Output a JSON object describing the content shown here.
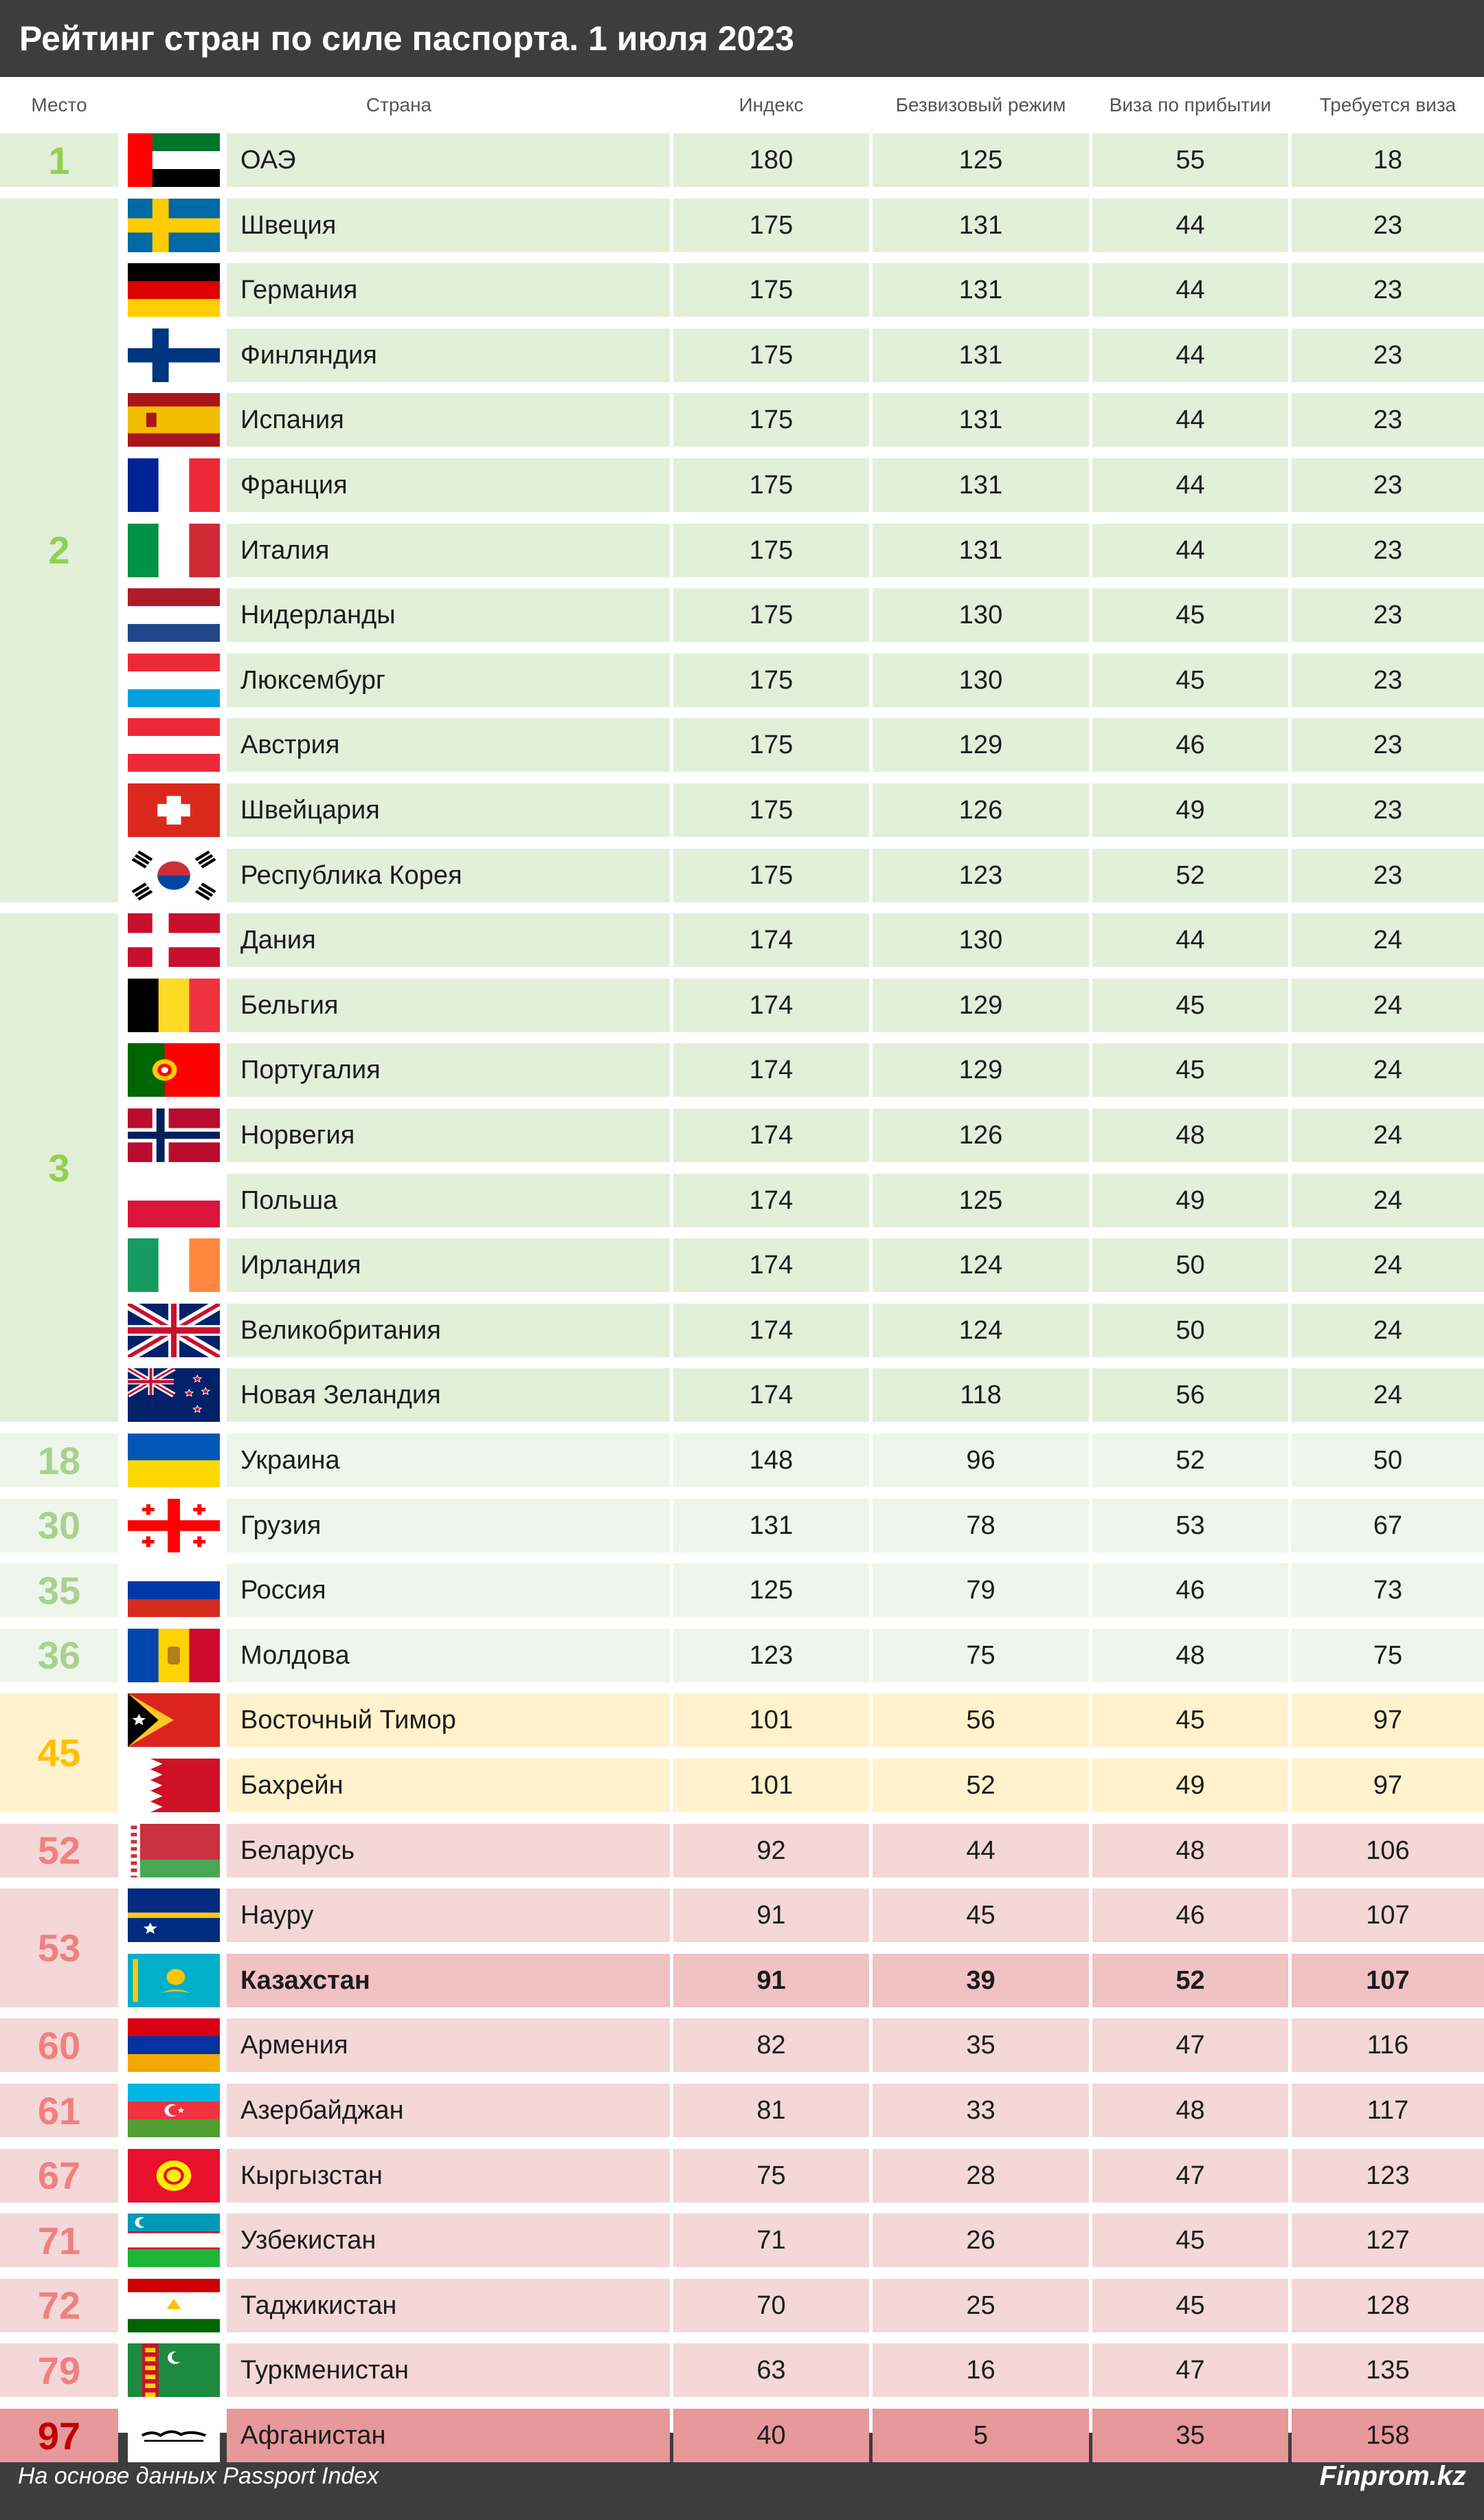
{
  "title": "Рейтинг стран по силе паспорта. 1 июля 2023",
  "footer": {
    "source": "На основе данных Passport Index",
    "brand": "Finprom.kz"
  },
  "colors": {
    "tier_green_row": "#e2efd9",
    "tier_green_rank": "#92d050",
    "tier_lightgreen_row": "#eef5ea",
    "tier_lightgreen_rank": "#a9d18e",
    "tier_yellow_row": "#fff2cc",
    "tier_yellow_rank": "#ffc000",
    "tier_pink_row": "#f4d7d7",
    "tier_pink_rank": "#f08080",
    "tier_red_row": "#e6989a",
    "tier_red_rank": "#c00000",
    "highlight_row": "#f0c2c2"
  },
  "chart_data": {
    "type": "table",
    "title": "Рейтинг стран по силе паспорта. 1 июля 2023",
    "columns": [
      "Место",
      "Страна",
      "Индекс",
      "Безвизовый режим",
      "Виза по прибытии",
      "Требуется виза"
    ],
    "rows": [
      {
        "place": "1",
        "country": "ОАЭ",
        "flag": "ae",
        "index": "180",
        "visa_free": "125",
        "on_arrival": "55",
        "required": "18",
        "tier": "green"
      },
      {
        "place": "2",
        "country": "Швеция",
        "flag": "se",
        "index": "175",
        "visa_free": "131",
        "on_arrival": "44",
        "required": "23",
        "tier": "green"
      },
      {
        "place": "2",
        "country": "Германия",
        "flag": "de",
        "index": "175",
        "visa_free": "131",
        "on_arrival": "44",
        "required": "23",
        "tier": "green"
      },
      {
        "place": "2",
        "country": "Финляндия",
        "flag": "fi",
        "index": "175",
        "visa_free": "131",
        "on_arrival": "44",
        "required": "23",
        "tier": "green"
      },
      {
        "place": "2",
        "country": "Испания",
        "flag": "es",
        "index": "175",
        "visa_free": "131",
        "on_arrival": "44",
        "required": "23",
        "tier": "green"
      },
      {
        "place": "2",
        "country": "Франция",
        "flag": "fr",
        "index": "175",
        "visa_free": "131",
        "on_arrival": "44",
        "required": "23",
        "tier": "green"
      },
      {
        "place": "2",
        "country": "Италия",
        "flag": "it",
        "index": "175",
        "visa_free": "131",
        "on_arrival": "44",
        "required": "23",
        "tier": "green"
      },
      {
        "place": "2",
        "country": "Нидерланды",
        "flag": "nl",
        "index": "175",
        "visa_free": "130",
        "on_arrival": "45",
        "required": "23",
        "tier": "green"
      },
      {
        "place": "2",
        "country": "Люксембург",
        "flag": "lu",
        "index": "175",
        "visa_free": "130",
        "on_arrival": "45",
        "required": "23",
        "tier": "green"
      },
      {
        "place": "2",
        "country": "Австрия",
        "flag": "at",
        "index": "175",
        "visa_free": "129",
        "on_arrival": "46",
        "required": "23",
        "tier": "green"
      },
      {
        "place": "2",
        "country": "Швейцария",
        "flag": "ch",
        "index": "175",
        "visa_free": "126",
        "on_arrival": "49",
        "required": "23",
        "tier": "green"
      },
      {
        "place": "2",
        "country": "Республика Корея",
        "flag": "kr",
        "index": "175",
        "visa_free": "123",
        "on_arrival": "52",
        "required": "23",
        "tier": "green"
      },
      {
        "place": "3",
        "country": "Дания",
        "flag": "dk",
        "index": "174",
        "visa_free": "130",
        "on_arrival": "44",
        "required": "24",
        "tier": "green"
      },
      {
        "place": "3",
        "country": "Бельгия",
        "flag": "be",
        "index": "174",
        "visa_free": "129",
        "on_arrival": "45",
        "required": "24",
        "tier": "green"
      },
      {
        "place": "3",
        "country": "Португалия",
        "flag": "pt",
        "index": "174",
        "visa_free": "129",
        "on_arrival": "45",
        "required": "24",
        "tier": "green"
      },
      {
        "place": "3",
        "country": "Норвегия",
        "flag": "no",
        "index": "174",
        "visa_free": "126",
        "on_arrival": "48",
        "required": "24",
        "tier": "green"
      },
      {
        "place": "3",
        "country": "Польша",
        "flag": "pl",
        "index": "174",
        "visa_free": "125",
        "on_arrival": "49",
        "required": "24",
        "tier": "green"
      },
      {
        "place": "3",
        "country": "Ирландия",
        "flag": "ie",
        "index": "174",
        "visa_free": "124",
        "on_arrival": "50",
        "required": "24",
        "tier": "green"
      },
      {
        "place": "3",
        "country": "Великобритания",
        "flag": "gb",
        "index": "174",
        "visa_free": "124",
        "on_arrival": "50",
        "required": "24",
        "tier": "green"
      },
      {
        "place": "3",
        "country": "Новая Зеландия",
        "flag": "nz",
        "index": "174",
        "visa_free": "118",
        "on_arrival": "56",
        "required": "24",
        "tier": "green"
      },
      {
        "place": "18",
        "country": "Украина",
        "flag": "ua",
        "index": "148",
        "visa_free": "96",
        "on_arrival": "52",
        "required": "50",
        "tier": "lightgreen"
      },
      {
        "place": "30",
        "country": "Грузия",
        "flag": "ge",
        "index": "131",
        "visa_free": "78",
        "on_arrival": "53",
        "required": "67",
        "tier": "lightgreen"
      },
      {
        "place": "35",
        "country": "Россия",
        "flag": "ru",
        "index": "125",
        "visa_free": "79",
        "on_arrival": "46",
        "required": "73",
        "tier": "lightgreen"
      },
      {
        "place": "36",
        "country": "Молдова",
        "flag": "md",
        "index": "123",
        "visa_free": "75",
        "on_arrival": "48",
        "required": "75",
        "tier": "lightgreen"
      },
      {
        "place": "45",
        "country": "Восточный Тимор",
        "flag": "tl",
        "index": "101",
        "visa_free": "56",
        "on_arrival": "45",
        "required": "97",
        "tier": "yellow"
      },
      {
        "place": "45",
        "country": "Бахрейн",
        "flag": "bh",
        "index": "101",
        "visa_free": "52",
        "on_arrival": "49",
        "required": "97",
        "tier": "yellow"
      },
      {
        "place": "52",
        "country": "Беларусь",
        "flag": "by",
        "index": "92",
        "visa_free": "44",
        "on_arrival": "48",
        "required": "106",
        "tier": "pink"
      },
      {
        "place": "53",
        "country": "Науру",
        "flag": "nr",
        "index": "91",
        "visa_free": "45",
        "on_arrival": "46",
        "required": "107",
        "tier": "pink"
      },
      {
        "place": "53",
        "country": "Казахстан",
        "flag": "kz",
        "index": "91",
        "visa_free": "39",
        "on_arrival": "52",
        "required": "107",
        "tier": "pink",
        "highlight": true
      },
      {
        "place": "60",
        "country": "Армения",
        "flag": "am",
        "index": "82",
        "visa_free": "35",
        "on_arrival": "47",
        "required": "116",
        "tier": "pink"
      },
      {
        "place": "61",
        "country": "Азербайджан",
        "flag": "az",
        "index": "81",
        "visa_free": "33",
        "on_arrival": "48",
        "required": "117",
        "tier": "pink"
      },
      {
        "place": "67",
        "country": "Кыргызстан",
        "flag": "kg",
        "index": "75",
        "visa_free": "28",
        "on_arrival": "47",
        "required": "123",
        "tier": "pink"
      },
      {
        "place": "71",
        "country": "Узбекистан",
        "flag": "uz",
        "index": "71",
        "visa_free": "26",
        "on_arrival": "45",
        "required": "127",
        "tier": "pink"
      },
      {
        "place": "72",
        "country": "Таджикистан",
        "flag": "tj",
        "index": "70",
        "visa_free": "25",
        "on_arrival": "45",
        "required": "128",
        "tier": "pink"
      },
      {
        "place": "79",
        "country": "Туркменистан",
        "flag": "tm",
        "index": "63",
        "visa_free": "16",
        "on_arrival": "47",
        "required": "135",
        "tier": "pink"
      },
      {
        "place": "97",
        "country": "Афганистан",
        "flag": "af",
        "index": "40",
        "visa_free": "5",
        "on_arrival": "35",
        "required": "158",
        "tier": "red"
      }
    ]
  }
}
